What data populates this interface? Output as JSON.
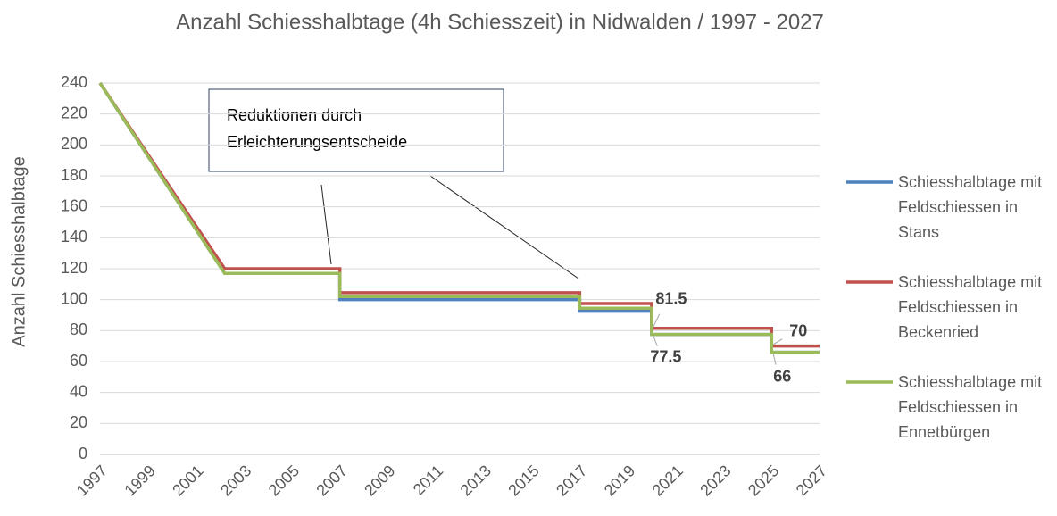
{
  "chart_data": {
    "type": "line",
    "title": "Anzahl Schiesshalbtage (4h Schiesszeit) in Nidwalden / 1997 - 2027",
    "y_label": "Anzahl Schiesshalbtage",
    "annotation": [
      "Reduktionen durch",
      "Erleichterungsentscheide"
    ],
    "x": [
      1997,
      2002.2,
      2007,
      2007,
      2017,
      2017,
      2020,
      2020,
      2025,
      2025,
      2027
    ],
    "series": [
      {
        "name": "Schiesshalbtage mit Feldschiessen in Stans",
        "color": "#4f81bd",
        "values": [
          240,
          117,
          117,
          100,
          100,
          92.5,
          92.5,
          77.5,
          77.5,
          66,
          66
        ]
      },
      {
        "name": "Schiesshalbtage mit Feldschiessen in Beckenried",
        "color": "#c0504d",
        "values": [
          240,
          120,
          120,
          104.5,
          104.5,
          97.5,
          97.5,
          81.5,
          81.5,
          70,
          70
        ],
        "value_labels": [
          null,
          null,
          null,
          null,
          null,
          null,
          null,
          "81.5",
          null,
          "70",
          null
        ]
      },
      {
        "name": "Schiesshalbtage mit Feldschiessen in Ennetbürgen",
        "color": "#9bbb59",
        "values": [
          240,
          117,
          117,
          102,
          102,
          94.5,
          94.5,
          77.5,
          77.5,
          66,
          66
        ],
        "value_labels": [
          null,
          null,
          null,
          null,
          null,
          null,
          null,
          "77.5",
          null,
          "66",
          null
        ]
      }
    ],
    "xlim": [
      1997,
      2027
    ],
    "xticks": [
      1997,
      1999,
      2001,
      2003,
      2005,
      2007,
      2009,
      2011,
      2013,
      2015,
      2017,
      2019,
      2021,
      2023,
      2025,
      2027
    ],
    "ylim": [
      0,
      240
    ],
    "yticks": [
      0,
      20,
      40,
      60,
      80,
      100,
      120,
      140,
      160,
      180,
      200,
      220,
      240
    ],
    "grid": true,
    "legend": "right"
  }
}
